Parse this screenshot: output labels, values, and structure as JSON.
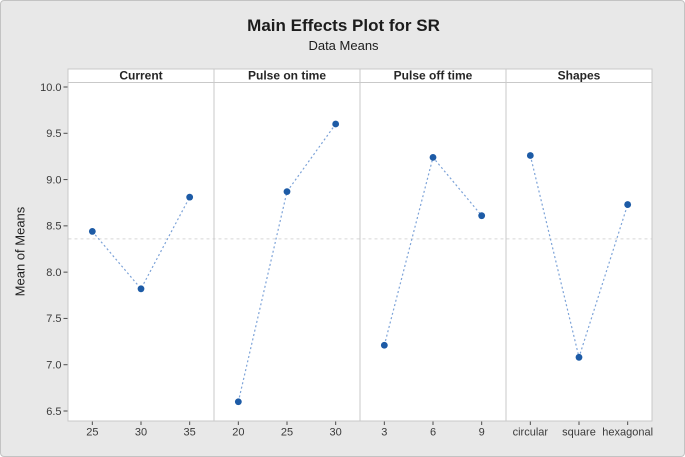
{
  "chart_data": {
    "type": "line",
    "title": "Main Effects Plot for SR",
    "subtitle": "Data Means",
    "ylabel": "Mean of Means",
    "ylim": [
      6.5,
      10.0
    ],
    "yticks": [
      6.5,
      7.0,
      7.5,
      8.0,
      8.5,
      9.0,
      9.5,
      10.0
    ],
    "grand_mean_reference": 8.36,
    "grid": false,
    "legend": "none",
    "panels": [
      {
        "label": "Current",
        "categories": [
          "25",
          "30",
          "35"
        ],
        "values": [
          8.44,
          7.82,
          8.81
        ]
      },
      {
        "label": "Pulse on time",
        "categories": [
          "20",
          "25",
          "30"
        ],
        "values": [
          6.6,
          8.87,
          9.6
        ]
      },
      {
        "label": "Pulse off time",
        "categories": [
          "3",
          "6",
          "9"
        ],
        "values": [
          7.21,
          9.24,
          8.61
        ]
      },
      {
        "label": "Shapes",
        "categories": [
          "circular",
          "square",
          "hexagonal"
        ],
        "values": [
          9.26,
          7.08,
          8.73
        ]
      }
    ],
    "colors": {
      "point": "#1d5ba6",
      "segment_line": "#7da3d8",
      "reference_line": "#d8d8d8",
      "panel_border": "#c9c9c9",
      "tick_mark": "#4d4d4d",
      "tick_text": "#3a3a3a",
      "header_text": "#262626",
      "background": "#e8e8e8",
      "plot_background": "#ffffff"
    }
  }
}
